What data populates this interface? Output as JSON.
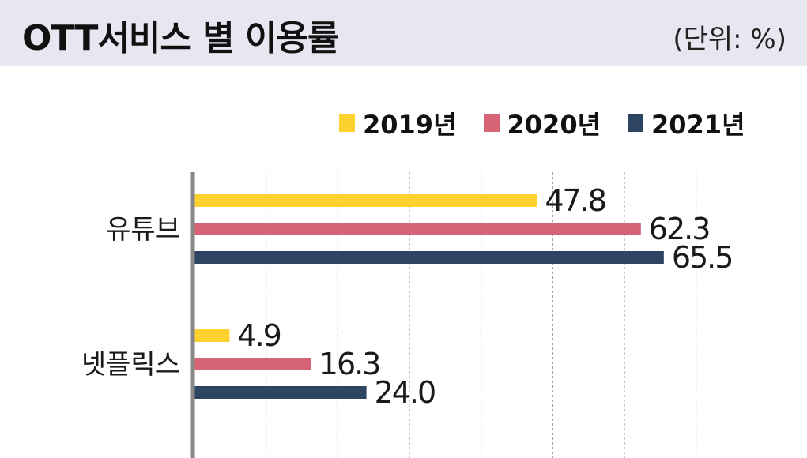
{
  "header": {
    "title": "OTT서비스 별 이용률",
    "unit": "(단위: %)"
  },
  "chart_data": {
    "type": "bar",
    "orientation": "horizontal",
    "categories": [
      "유튜브",
      "넷플릭스"
    ],
    "series": [
      {
        "name": "2019년",
        "color": "#fdd12e",
        "values": [
          47.8,
          4.9
        ]
      },
      {
        "name": "2020년",
        "color": "#d76476",
        "values": [
          62.3,
          16.3
        ]
      },
      {
        "name": "2021년",
        "color": "#2d4563",
        "values": [
          65.5,
          24.0
        ]
      }
    ],
    "value_labels": [
      [
        "47.8",
        "4.9"
      ],
      [
        "62.3",
        "16.3"
      ],
      [
        "65.5",
        "24.0"
      ]
    ],
    "xlim": [
      0,
      70
    ],
    "grid": true,
    "legend": "top-right"
  }
}
